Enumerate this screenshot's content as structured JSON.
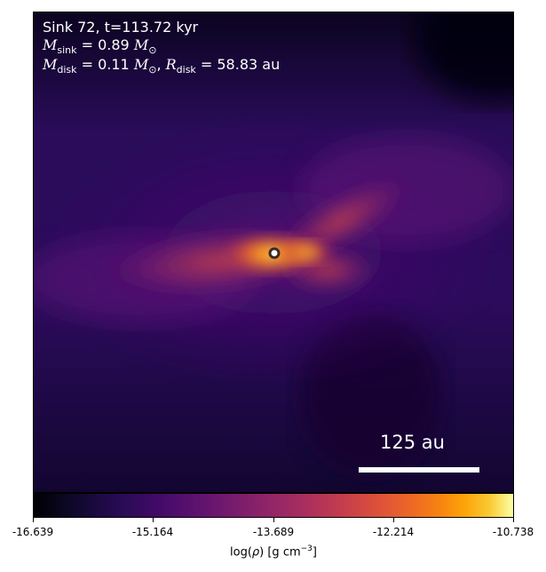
{
  "annotation": {
    "line1": "Sink 72, t=113.72 kyr",
    "msink_value": "0.89",
    "mdisk_value": "0.11",
    "rdisk_value": "58.83",
    "unit_msun": "M",
    "unit_au": "au"
  },
  "scale_bar": {
    "label": "125 au"
  },
  "colorbar": {
    "ticks": [
      "-16.639",
      "-15.164",
      "-13.689",
      "-12.214",
      "-10.738"
    ],
    "label_prefix": "log(",
    "label_rho": "ρ",
    "label_units": ") [g cm",
    "label_exp": "−3",
    "label_end": "]",
    "colormap": "inferno"
  }
}
